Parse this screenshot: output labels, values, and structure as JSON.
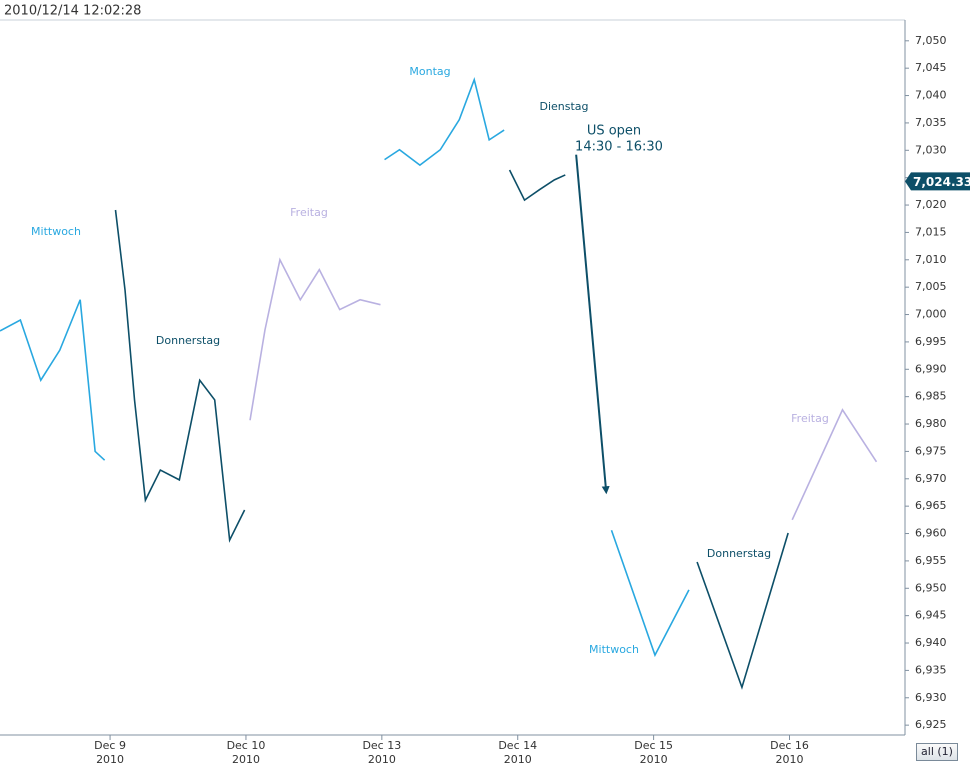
{
  "chart_data": {
    "type": "line",
    "timestamp": "2010/12/14 12:02:28",
    "xlim": [
      -0.81,
      5.85
    ],
    "ylim": [
      6923.2,
      7053.8
    ],
    "xticks": [
      {
        "value": 0,
        "label": "Dec 9"
      },
      {
        "value": 1,
        "label": "Dec 10"
      },
      {
        "value": 2,
        "label": "Dec 13"
      },
      {
        "value": 3,
        "label": "Dec 14"
      },
      {
        "value": 4,
        "label": "Dec 15"
      },
      {
        "value": 5,
        "label": "Dec 16"
      }
    ],
    "xtick_sublabels": [
      "2010",
      "2010",
      "2010",
      "2010",
      "2010",
      "2010"
    ],
    "yticks": [
      {
        "value": 6925,
        "label": "6,925"
      },
      {
        "value": 6930,
        "label": "6,930"
      },
      {
        "value": 6935,
        "label": "6,935"
      },
      {
        "value": 6940,
        "label": "6,940"
      },
      {
        "value": 6945,
        "label": "6,945"
      },
      {
        "value": 6950,
        "label": "6,950"
      },
      {
        "value": 6955,
        "label": "6,955"
      },
      {
        "value": 6960,
        "label": "6,960"
      },
      {
        "value": 6965,
        "label": "6,965"
      },
      {
        "value": 6970,
        "label": "6,970"
      },
      {
        "value": 6975,
        "label": "6,975"
      },
      {
        "value": 6980,
        "label": "6,980"
      },
      {
        "value": 6985,
        "label": "6,985"
      },
      {
        "value": 6990,
        "label": "6,990"
      },
      {
        "value": 6995,
        "label": "6,995"
      },
      {
        "value": 7000,
        "label": "7,000"
      },
      {
        "value": 7005,
        "label": "7,005"
      },
      {
        "value": 7010,
        "label": "7,010"
      },
      {
        "value": 7015,
        "label": "7,015"
      },
      {
        "value": 7020,
        "label": "7,020"
      },
      {
        "value": 7025,
        "label": "7,025"
      },
      {
        "value": 7030,
        "label": "7,030"
      },
      {
        "value": 7035,
        "label": "7,035"
      },
      {
        "value": 7040,
        "label": "7,040"
      },
      {
        "value": 7045,
        "label": "7,045"
      },
      {
        "value": 7050,
        "label": "7,050"
      }
    ],
    "last_price": {
      "value": 7024.33,
      "label": "7,024.33"
    },
    "annotations": [
      "US open",
      "14:30 - 16:30"
    ],
    "button": "all (1)",
    "series": [
      {
        "name": "Mittwoch",
        "color": "#29a8e0",
        "x": [
          -0.81,
          -0.66,
          -0.51,
          -0.37,
          -0.22,
          -0.11,
          -0.04
        ],
        "values": [
          6997,
          6999,
          6988,
          6993.5,
          7002.7,
          6975,
          6973.4
        ]
      },
      {
        "name": "Donnerstag",
        "color": "#0d4f68",
        "x": [
          0.04,
          0.11,
          0.18,
          0.26,
          0.37,
          0.51,
          0.66,
          0.77,
          0.88,
          0.99
        ],
        "values": [
          7019.1,
          7004.5,
          6984.4,
          6966.1,
          6971.6,
          6969.8,
          6988,
          6984.4,
          6958.8,
          6964.3
        ]
      },
      {
        "name": "Freitag",
        "color": "#b9b1e1",
        "x": [
          1.03,
          1.14,
          1.25,
          1.4,
          1.54,
          1.69,
          1.84,
          1.99
        ],
        "values": [
          6980.7,
          6997.2,
          7010,
          7002.7,
          7008.2,
          7000.9,
          7002.7,
          7001.8
        ]
      },
      {
        "name": "Montag",
        "color": "#29a8e0",
        "x": [
          2.02,
          2.13,
          2.28,
          2.43,
          2.57,
          2.68,
          2.79,
          2.9
        ],
        "values": [
          7028.3,
          7030.1,
          7027.3,
          7030.1,
          7035.6,
          7042.9,
          7031.9,
          7033.7
        ]
      },
      {
        "name": "Dienstag",
        "color": "#0d4f68",
        "x": [
          2.94,
          3.05,
          3.16,
          3.27,
          3.35
        ],
        "values": [
          7026.4,
          7020.9,
          7022.8,
          7024.6,
          7025.5
        ]
      },
      {
        "color": "#0d4f68",
        "arrow": true,
        "x": [
          3.43,
          3.65
        ],
        "values": [
          7029.2,
          6967.9
        ]
      },
      {
        "name": "Mittwoch",
        "color": "#29a8e0",
        "x": [
          3.69,
          4.01,
          4.26
        ],
        "values": [
          6960.6,
          6937.8,
          6949.7
        ]
      },
      {
        "name": "Donnerstag",
        "color": "#0d4f68",
        "x": [
          4.32,
          4.65,
          4.99
        ],
        "values": [
          6954.8,
          6931.9,
          6960.1
        ]
      },
      {
        "name": "Freitag",
        "color": "#b9b1e1",
        "x": [
          5.02,
          5.39,
          5.64
        ],
        "values": [
          6962.5,
          6982.6,
          6973.1
        ]
      }
    ]
  }
}
